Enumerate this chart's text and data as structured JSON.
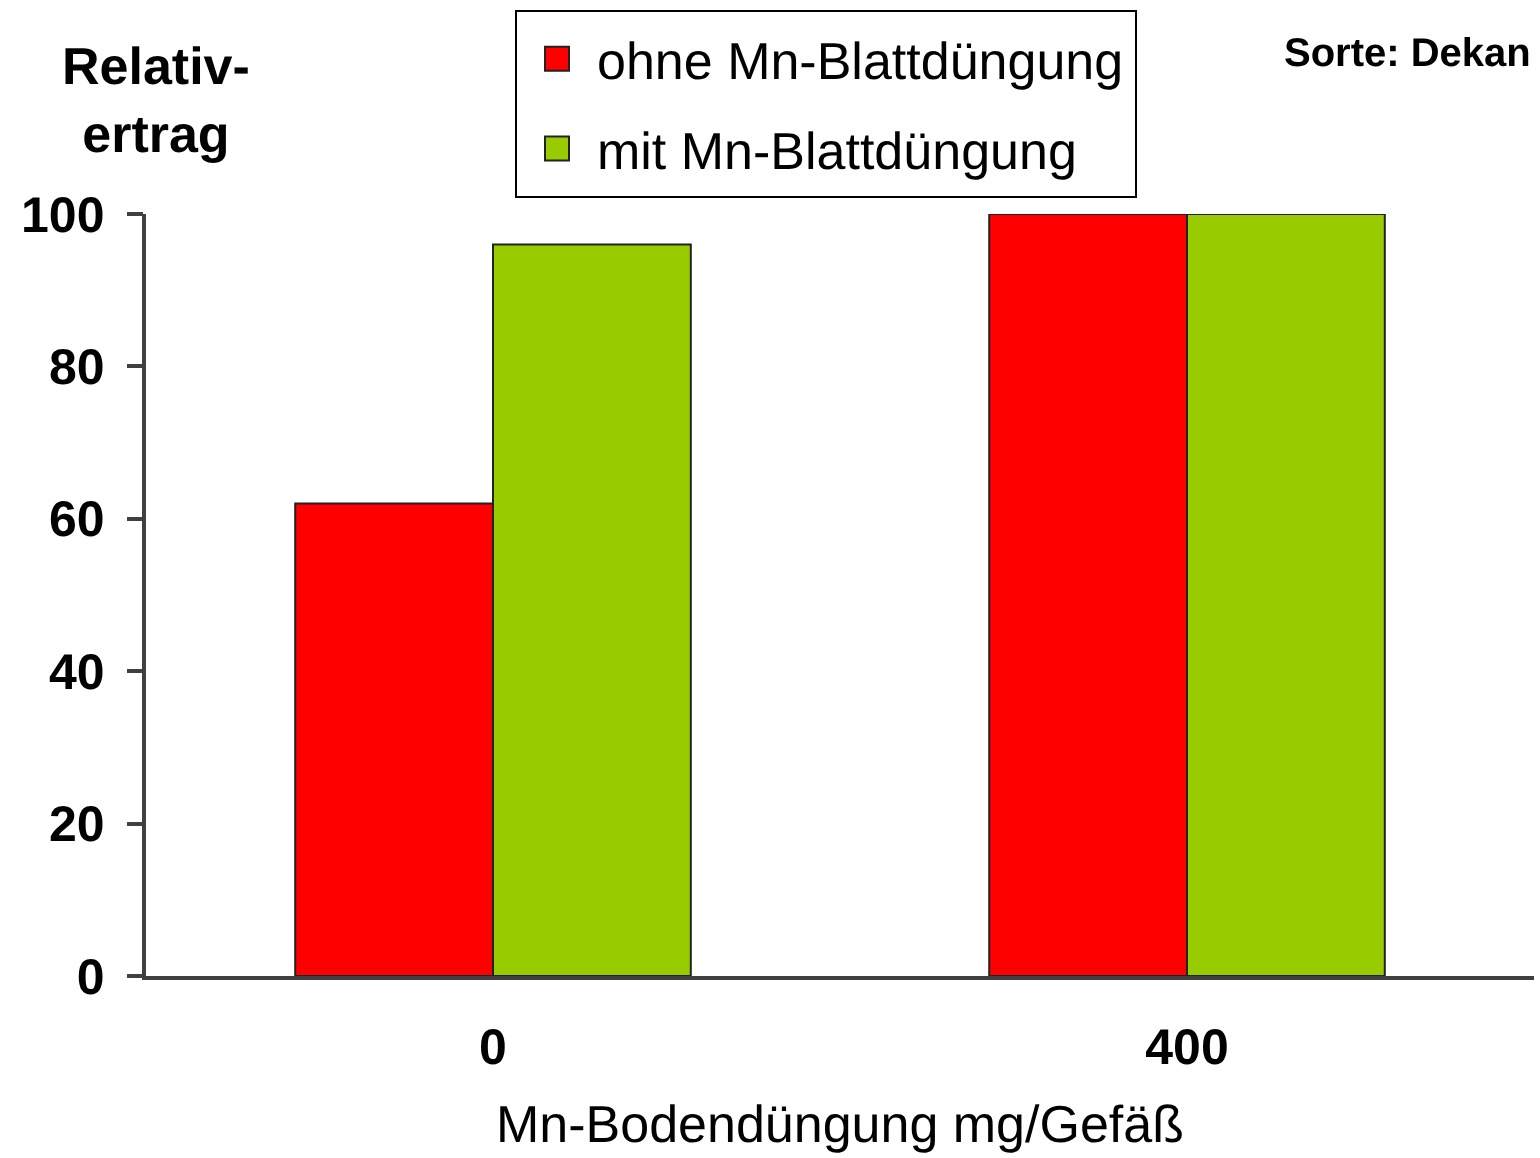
{
  "chart_data": {
    "type": "bar",
    "ylabel": "Relativ-\nertrag",
    "xlabel": "Mn-Bodendüngung mg/Gefäß",
    "annotations": [
      "Sorte: Dekan"
    ],
    "categories": [
      "0",
      "400"
    ],
    "series": [
      {
        "name": "ohne Mn-Blattdüngung",
        "color": "#ff0000",
        "values": [
          62,
          100
        ]
      },
      {
        "name": "mit Mn-Blattdüngung",
        "color": "#99cc00",
        "values": [
          96,
          100
        ]
      }
    ],
    "ylim": [
      0,
      100
    ],
    "yticks": [
      0,
      20,
      40,
      60,
      80,
      100
    ],
    "grid": false,
    "legend": "top"
  }
}
